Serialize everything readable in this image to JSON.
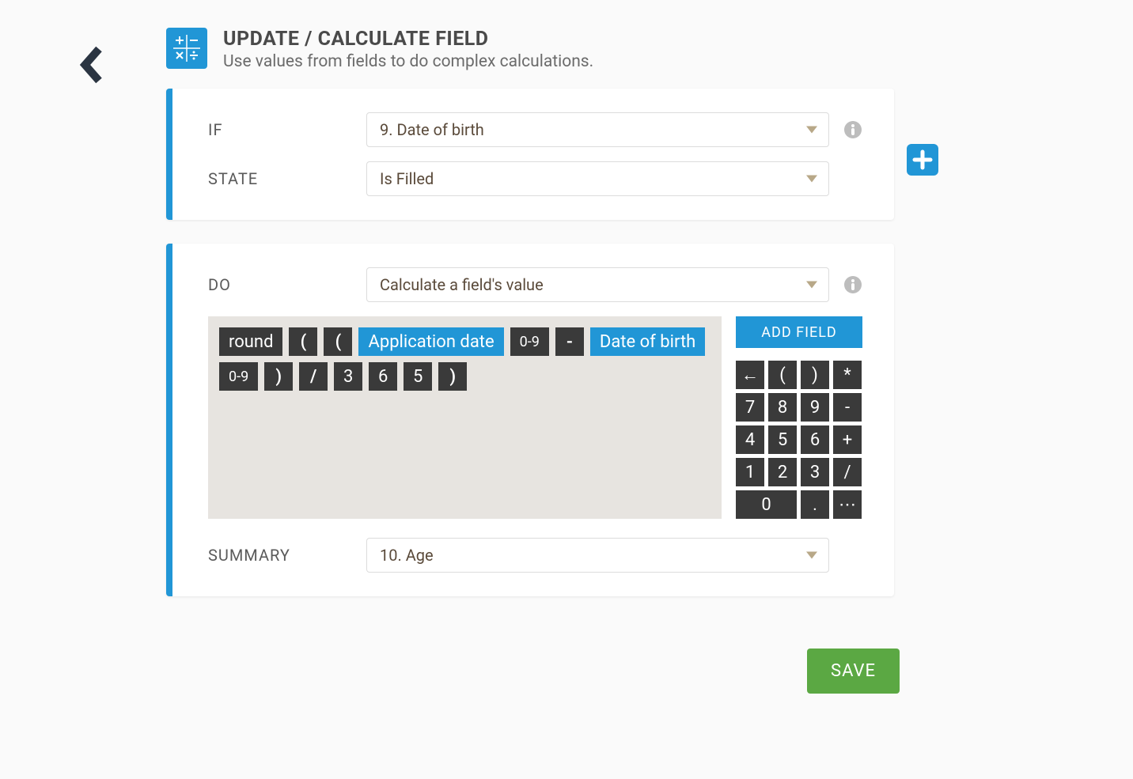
{
  "header": {
    "title": "UPDATE / CALCULATE FIELD",
    "subtitle": "Use values from fields to do complex calculations."
  },
  "condition": {
    "if_label": "IF",
    "if_value": "9. Date of birth",
    "state_label": "STATE",
    "state_value": "Is Filled"
  },
  "action": {
    "do_label": "DO",
    "do_value": "Calculate a field's value",
    "add_field_label": "ADD FIELD",
    "summary_label": "SUMMARY",
    "summary_value": "10. Age",
    "formula_tokens": [
      {
        "type": "func",
        "text": "round"
      },
      {
        "type": "op",
        "text": "("
      },
      {
        "type": "op",
        "text": "("
      },
      {
        "type": "field",
        "text": "Application date"
      },
      {
        "type": "fsel",
        "text": "0-9"
      },
      {
        "type": "op",
        "text": "-"
      },
      {
        "type": "field",
        "text": "Date of birth"
      },
      {
        "type": "fsel",
        "text": "0-9"
      },
      {
        "type": "op",
        "text": ")"
      },
      {
        "type": "op",
        "text": "/"
      },
      {
        "type": "num",
        "text": "3"
      },
      {
        "type": "num",
        "text": "6"
      },
      {
        "type": "num",
        "text": "5"
      },
      {
        "type": "op",
        "text": ")"
      }
    ],
    "keypad": [
      {
        "text": "←",
        "wide": false,
        "name": "key-backspace"
      },
      {
        "text": "(",
        "wide": false,
        "name": "key-open-paren"
      },
      {
        "text": ")",
        "wide": false,
        "name": "key-close-paren"
      },
      {
        "text": "*",
        "wide": false,
        "name": "key-multiply"
      },
      {
        "text": "7",
        "wide": false,
        "name": "key-7"
      },
      {
        "text": "8",
        "wide": false,
        "name": "key-8"
      },
      {
        "text": "9",
        "wide": false,
        "name": "key-9"
      },
      {
        "text": "-",
        "wide": false,
        "name": "key-minus"
      },
      {
        "text": "4",
        "wide": false,
        "name": "key-4"
      },
      {
        "text": "5",
        "wide": false,
        "name": "key-5"
      },
      {
        "text": "6",
        "wide": false,
        "name": "key-6"
      },
      {
        "text": "+",
        "wide": false,
        "name": "key-plus"
      },
      {
        "text": "1",
        "wide": false,
        "name": "key-1"
      },
      {
        "text": "2",
        "wide": false,
        "name": "key-2"
      },
      {
        "text": "3",
        "wide": false,
        "name": "key-3"
      },
      {
        "text": "/",
        "wide": false,
        "name": "key-divide"
      },
      {
        "text": "0",
        "wide": true,
        "name": "key-0"
      },
      {
        "text": ".",
        "wide": false,
        "name": "key-dot"
      },
      {
        "text": "⋯",
        "wide": false,
        "name": "key-more"
      }
    ]
  },
  "save_label": "SAVE",
  "colors": {
    "primary": "#2196d6",
    "dark": "#3a3a3a",
    "save": "#5ba843",
    "bg": "#fafafa",
    "formula_bg": "#e7e4e0"
  }
}
